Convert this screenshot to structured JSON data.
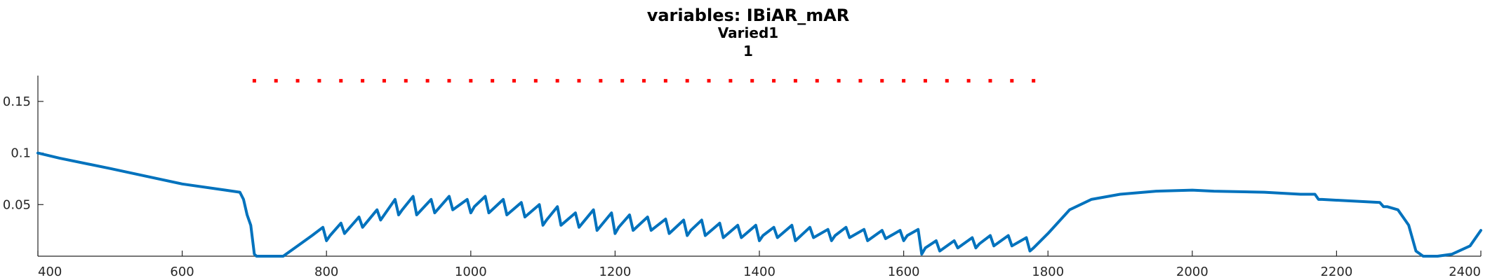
{
  "chart_data": {
    "type": "line",
    "title": [
      "variables: IBiAR_mAR",
      "Varied1",
      "1"
    ],
    "xlim": [
      400,
      2400
    ],
    "ylim": [
      0,
      0.175
    ],
    "xticks": [
      400,
      600,
      800,
      1000,
      1200,
      1400,
      1600,
      1800,
      2000,
      2200,
      2400
    ],
    "xtick_labels": [
      "400",
      "600",
      "800",
      "1000",
      "1200",
      "1400",
      "1600",
      "1800",
      "2000",
      "2200",
      "2400"
    ],
    "yticks": [
      0.05,
      0.1,
      0.15
    ],
    "ytick_labels": [
      "0.05",
      "0.1",
      "0.15"
    ],
    "grid": false,
    "series": [
      {
        "color": "#0072BD",
        "x": [
          400,
          430,
          500,
          600,
          660,
          680,
          685,
          690,
          695,
          700,
          703,
          720,
          740,
          760,
          780,
          795,
          800,
          805,
          820,
          825,
          845,
          850,
          870,
          875,
          895,
          900,
          905,
          920,
          925,
          945,
          950,
          970,
          975,
          995,
          1000,
          1005,
          1020,
          1025,
          1045,
          1050,
          1070,
          1075,
          1095,
          1100,
          1105,
          1120,
          1125,
          1145,
          1150,
          1170,
          1175,
          1195,
          1200,
          1205,
          1220,
          1225,
          1245,
          1250,
          1270,
          1275,
          1295,
          1300,
          1305,
          1320,
          1325,
          1345,
          1350,
          1370,
          1375,
          1395,
          1400,
          1405,
          1420,
          1425,
          1445,
          1450,
          1470,
          1475,
          1495,
          1500,
          1505,
          1520,
          1525,
          1545,
          1550,
          1570,
          1575,
          1595,
          1600,
          1605,
          1620,
          1625,
          1630,
          1645,
          1650,
          1670,
          1675,
          1695,
          1700,
          1705,
          1720,
          1725,
          1745,
          1750,
          1770,
          1775,
          1780,
          1800,
          1830,
          1860,
          1900,
          1950,
          2000,
          2030,
          2100,
          2150,
          2170,
          2175,
          2180,
          2260,
          2265,
          2270,
          2285,
          2295,
          2300,
          2310,
          2320,
          2340,
          2360,
          2385,
          2400
        ],
        "y": [
          0.1,
          0.095,
          0.085,
          0.07,
          0.064,
          0.062,
          0.055,
          0.04,
          0.03,
          0.002,
          0.0,
          0.0,
          0.0,
          0.01,
          0.02,
          0.028,
          0.015,
          0.02,
          0.032,
          0.022,
          0.038,
          0.028,
          0.045,
          0.035,
          0.055,
          0.04,
          0.045,
          0.058,
          0.04,
          0.055,
          0.042,
          0.058,
          0.045,
          0.055,
          0.042,
          0.048,
          0.058,
          0.042,
          0.055,
          0.04,
          0.052,
          0.038,
          0.05,
          0.03,
          0.035,
          0.048,
          0.03,
          0.042,
          0.028,
          0.045,
          0.025,
          0.042,
          0.022,
          0.028,
          0.04,
          0.025,
          0.038,
          0.025,
          0.036,
          0.022,
          0.035,
          0.02,
          0.025,
          0.035,
          0.02,
          0.032,
          0.018,
          0.03,
          0.018,
          0.03,
          0.015,
          0.02,
          0.028,
          0.018,
          0.03,
          0.015,
          0.028,
          0.018,
          0.026,
          0.015,
          0.02,
          0.028,
          0.018,
          0.026,
          0.015,
          0.025,
          0.017,
          0.025,
          0.015,
          0.02,
          0.026,
          0.002,
          0.008,
          0.015,
          0.005,
          0.015,
          0.008,
          0.018,
          0.008,
          0.012,
          0.02,
          0.01,
          0.02,
          0.01,
          0.018,
          0.005,
          0.008,
          0.022,
          0.045,
          0.055,
          0.06,
          0.063,
          0.064,
          0.063,
          0.062,
          0.06,
          0.06,
          0.055,
          0.055,
          0.052,
          0.048,
          0.048,
          0.045,
          0.035,
          0.03,
          0.005,
          0.0,
          0.0,
          0.002,
          0.01,
          0.025
        ]
      },
      {
        "color": "#ff0000",
        "marker": "dot",
        "x": [
          700,
          730,
          760,
          790,
          820,
          850,
          880,
          910,
          940,
          970,
          1000,
          1030,
          1060,
          1090,
          1120,
          1150,
          1180,
          1210,
          1240,
          1270,
          1300,
          1330,
          1360,
          1390,
          1420,
          1450,
          1480,
          1510,
          1540,
          1570,
          1600,
          1630,
          1660,
          1690,
          1720,
          1750,
          1780
        ],
        "y": [
          0.17,
          0.17,
          0.17,
          0.17,
          0.17,
          0.17,
          0.17,
          0.17,
          0.17,
          0.17,
          0.17,
          0.17,
          0.17,
          0.17,
          0.17,
          0.17,
          0.17,
          0.17,
          0.17,
          0.17,
          0.17,
          0.17,
          0.17,
          0.17,
          0.17,
          0.17,
          0.17,
          0.17,
          0.17,
          0.17,
          0.17,
          0.17,
          0.17,
          0.17,
          0.17,
          0.17,
          0.17
        ]
      }
    ]
  }
}
